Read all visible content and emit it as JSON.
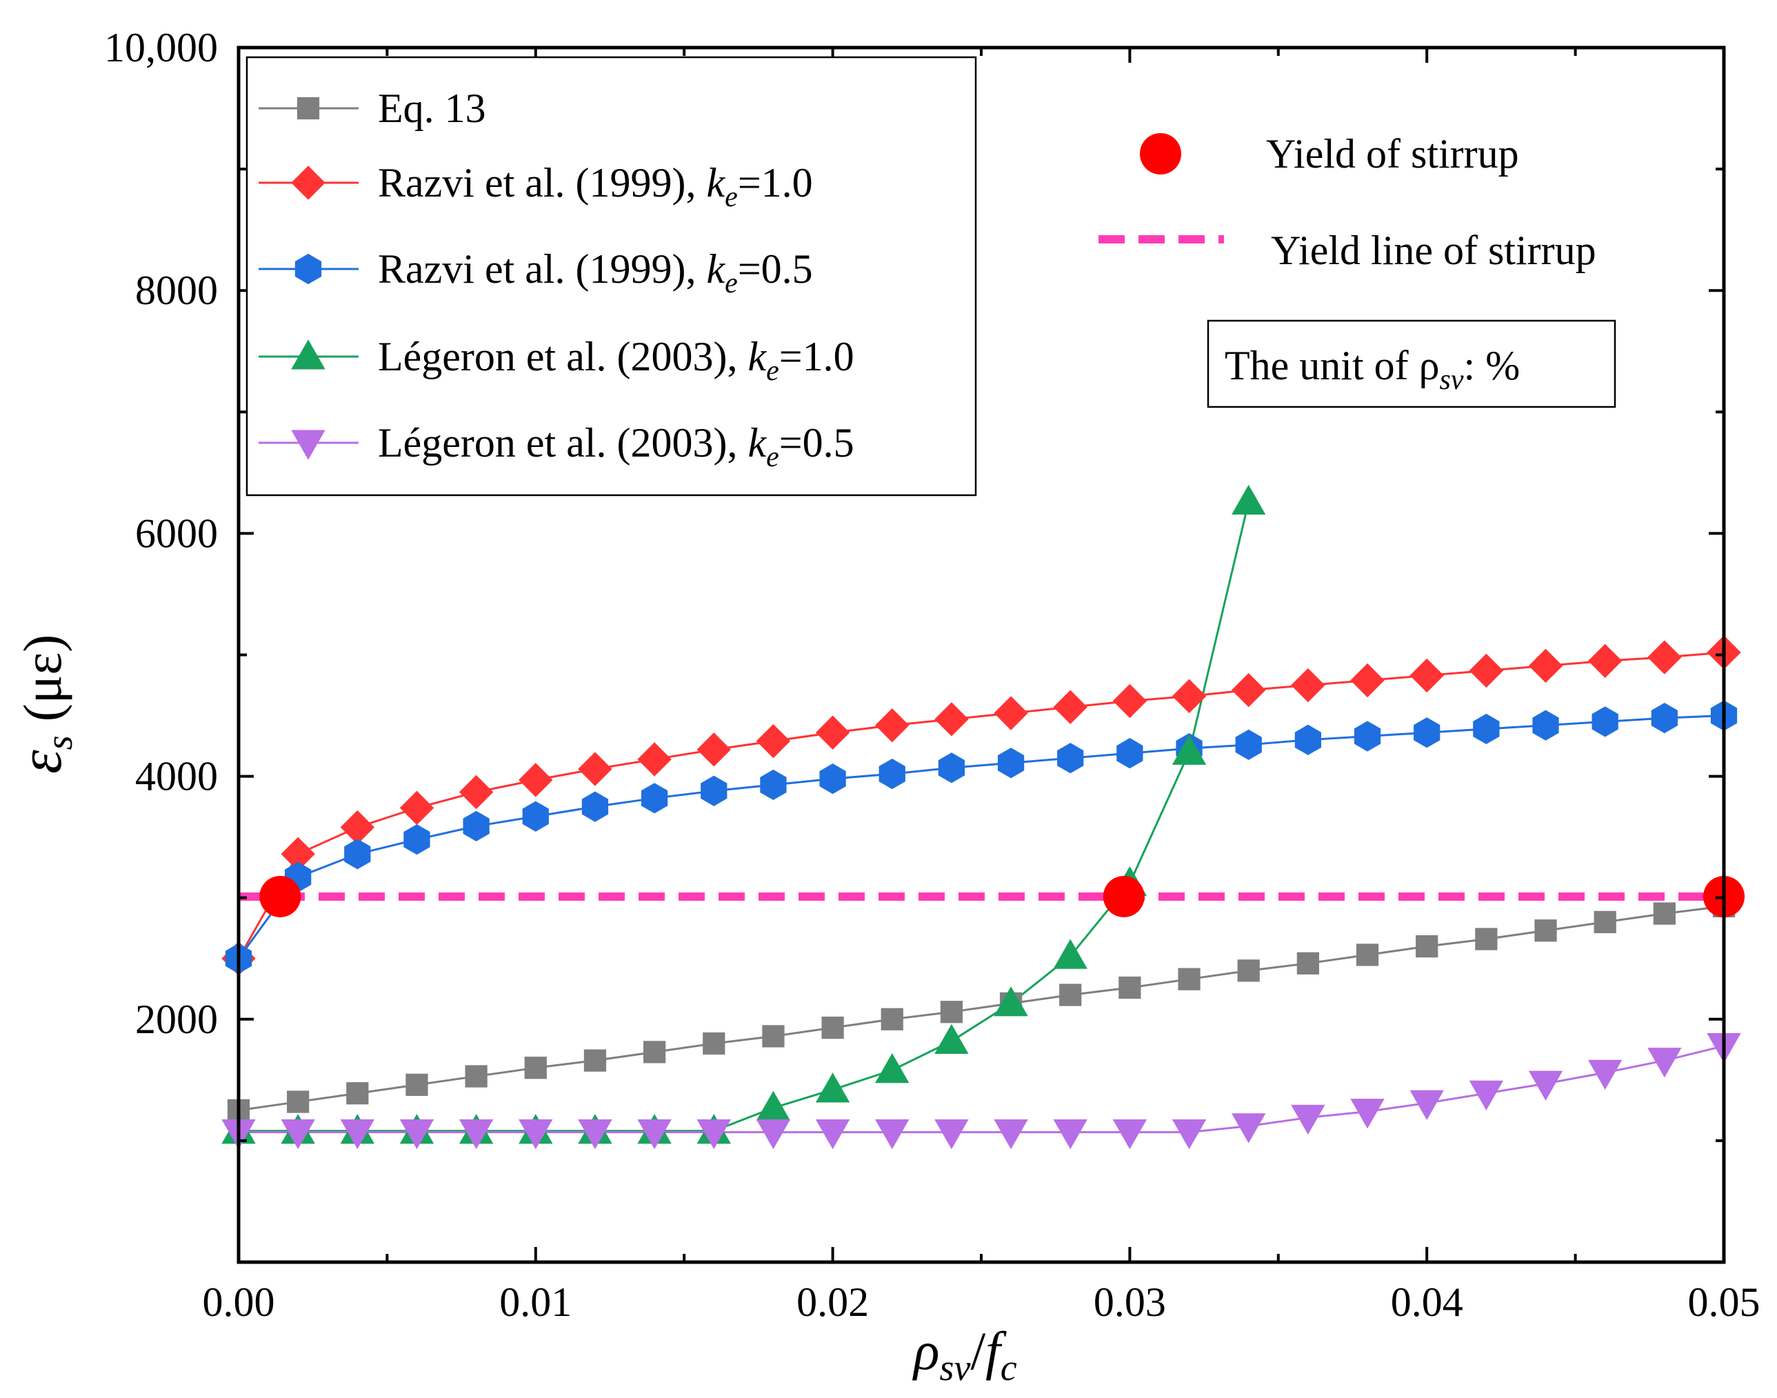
{
  "chart_data": {
    "type": "line",
    "xlabel": {
      "main": "ρ",
      "sub1": "sv",
      "sep": "/",
      "main2": "f",
      "sub2": "c"
    },
    "ylabel": {
      "symbol": "ε",
      "sub": "s",
      "unit": "(με)"
    },
    "xlim": [
      0,
      0.05
    ],
    "ylim": [
      0,
      10000
    ],
    "xticks": [
      0.0,
      0.01,
      0.02,
      0.03,
      0.04,
      0.05
    ],
    "xtick_labels": [
      "0.00",
      "0.01",
      "0.02",
      "0.03",
      "0.04",
      "0.05"
    ],
    "yticks": [
      2000,
      4000,
      6000,
      8000,
      10000
    ],
    "ytick_labels": [
      "2000",
      "4000",
      "6000",
      "8000",
      "10,000"
    ],
    "series": [
      {
        "name": "Eq. 13",
        "label": "Eq. 13",
        "color": "#7f7f7f",
        "marker": "square",
        "x": [
          0,
          0.002,
          0.004,
          0.006,
          0.008,
          0.01,
          0.012,
          0.014,
          0.016,
          0.018,
          0.02,
          0.022,
          0.024,
          0.026,
          0.028,
          0.03,
          0.032,
          0.034,
          0.036,
          0.038,
          0.04,
          0.042,
          0.044,
          0.046,
          0.048,
          0.05
        ],
        "y": [
          1250,
          1320,
          1390,
          1460,
          1530,
          1600,
          1660,
          1730,
          1800,
          1860,
          1930,
          2000,
          2060,
          2130,
          2200,
          2260,
          2330,
          2400,
          2460,
          2530,
          2600,
          2660,
          2730,
          2800,
          2870,
          2930
        ]
      },
      {
        "name": "Razvi et al. (1999), ke=1.0",
        "label": "Razvi et al. (1999), ",
        "k_symbol": "k",
        "k_sub": "e",
        "k_value": "=1.0",
        "color": "#ff3333",
        "marker": "diamond",
        "x": [
          0,
          0.002,
          0.004,
          0.006,
          0.008,
          0.01,
          0.012,
          0.014,
          0.016,
          0.018,
          0.02,
          0.022,
          0.024,
          0.026,
          0.028,
          0.03,
          0.032,
          0.034,
          0.036,
          0.038,
          0.04,
          0.042,
          0.044,
          0.046,
          0.048,
          0.05
        ],
        "y": [
          2500,
          3360,
          3580,
          3740,
          3870,
          3970,
          4060,
          4140,
          4220,
          4290,
          4360,
          4420,
          4470,
          4520,
          4570,
          4620,
          4660,
          4710,
          4750,
          4790,
          4830,
          4870,
          4910,
          4950,
          4980,
          5020
        ]
      },
      {
        "name": "Razvi et al. (1999), ke=0.5",
        "label": "Razvi et al. (1999), ",
        "k_symbol": "k",
        "k_sub": "e",
        "k_value": "=0.5",
        "color": "#1f6fe0",
        "marker": "hexagon",
        "x": [
          0,
          0.002,
          0.004,
          0.006,
          0.008,
          0.01,
          0.012,
          0.014,
          0.016,
          0.018,
          0.02,
          0.022,
          0.024,
          0.026,
          0.028,
          0.03,
          0.032,
          0.034,
          0.036,
          0.038,
          0.04,
          0.042,
          0.044,
          0.046,
          0.048,
          0.05
        ],
        "y": [
          2500,
          3170,
          3360,
          3480,
          3590,
          3670,
          3750,
          3820,
          3880,
          3930,
          3980,
          4020,
          4070,
          4110,
          4150,
          4190,
          4230,
          4260,
          4300,
          4330,
          4360,
          4390,
          4420,
          4450,
          4480,
          4500
        ]
      },
      {
        "name": "Légeron et al. (2003), ke=1.0",
        "label": "Légeron et al. (2003), ",
        "k_symbol": "k",
        "k_sub": "e",
        "k_value": "=1.0",
        "color": "#17a35c",
        "marker": "triangle-up",
        "x": [
          0,
          0.002,
          0.004,
          0.006,
          0.008,
          0.01,
          0.012,
          0.014,
          0.016,
          0.018,
          0.02,
          0.022,
          0.024,
          0.026,
          0.028,
          0.03,
          0.032,
          0.034
        ],
        "y": [
          1080,
          1080,
          1080,
          1080,
          1080,
          1080,
          1080,
          1080,
          1080,
          1270,
          1420,
          1580,
          1820,
          2130,
          2520,
          3120,
          4200,
          6260
        ]
      },
      {
        "name": "Légeron et al. (2003), ke=0.5",
        "label": "Légeron et al. (2003), ",
        "k_symbol": "k",
        "k_sub": "e",
        "k_value": "=0.5",
        "color": "#b86ee6",
        "marker": "triangle-down",
        "x": [
          0,
          0.002,
          0.004,
          0.006,
          0.008,
          0.01,
          0.012,
          0.014,
          0.016,
          0.018,
          0.02,
          0.022,
          0.024,
          0.026,
          0.028,
          0.03,
          0.032,
          0.034,
          0.036,
          0.038,
          0.04,
          0.042,
          0.044,
          0.046,
          0.048,
          0.05
        ],
        "y": [
          1070,
          1070,
          1070,
          1070,
          1070,
          1070,
          1070,
          1070,
          1070,
          1070,
          1070,
          1070,
          1070,
          1070,
          1070,
          1070,
          1070,
          1120,
          1190,
          1240,
          1310,
          1390,
          1470,
          1560,
          1660,
          1780
        ]
      }
    ],
    "yield_points": {
      "label": "Yield of stirrup",
      "color": "#ff0000",
      "x": [
        0.0014,
        0.0298,
        0.05
      ],
      "y": [
        3010,
        3010,
        3010
      ]
    },
    "yield_line": {
      "label": "Yield line of stirrup",
      "color": "#ff3db4",
      "y": 3010
    },
    "note": {
      "text": "The unit of ρ",
      "sub": "sv",
      "suffix": ": %"
    }
  }
}
